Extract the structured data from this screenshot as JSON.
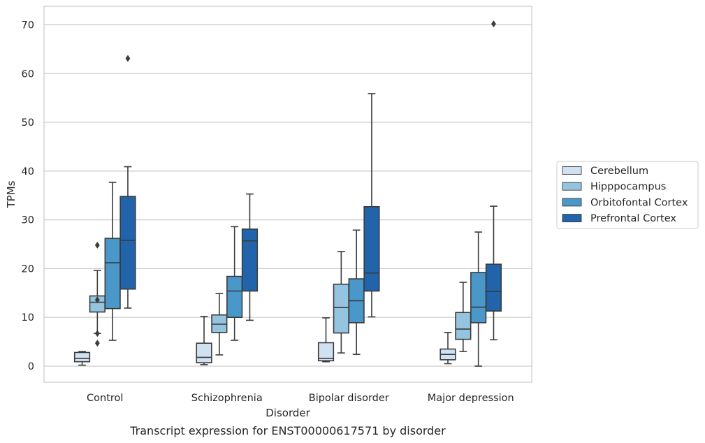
{
  "chart_data": {
    "type": "box",
    "xlabel": "Disorder",
    "ylabel": "TPMs",
    "caption": "Transcript expression for ENST00000617571 by disorder",
    "categories": [
      "Control",
      "Schizophrenia",
      "Bipolar disorder",
      "Major depression"
    ],
    "ylim": [
      -3.3,
      73.8
    ],
    "yticks": [
      0,
      10,
      20,
      30,
      40,
      50,
      60,
      70
    ],
    "grid": "horizontal",
    "legend_position": "right",
    "series": [
      {
        "name": "Cerebellum",
        "color": "#d0e1f2",
        "boxes": [
          {
            "whislo": 0.2,
            "q1": 0.9,
            "med": 1.6,
            "q3": 2.8,
            "whishi": 3.0,
            "fliers": []
          },
          {
            "whislo": 0.3,
            "q1": 0.7,
            "med": 1.8,
            "q3": 4.7,
            "whishi": 10.2,
            "fliers": []
          },
          {
            "whislo": 0.9,
            "q1": 1.1,
            "med": 1.6,
            "q3": 4.8,
            "whishi": 9.9,
            "fliers": []
          },
          {
            "whislo": 0.5,
            "q1": 1.3,
            "med": 2.4,
            "q3": 3.5,
            "whishi": 6.9,
            "fliers": []
          }
        ]
      },
      {
        "name": "Hipppocampus",
        "color": "#94c4df",
        "boxes": [
          {
            "whislo": 6.7,
            "q1": 11.1,
            "med": 13.1,
            "q3": 14.4,
            "whishi": 19.6,
            "fliers": [
              13.6,
              6.7,
              4.7,
              24.8
            ]
          },
          {
            "whislo": 2.3,
            "q1": 6.9,
            "med": 8.6,
            "q3": 10.5,
            "whishi": 14.9,
            "fliers": []
          },
          {
            "whislo": 2.7,
            "q1": 6.8,
            "med": 12.0,
            "q3": 16.8,
            "whishi": 23.5,
            "fliers": []
          },
          {
            "whislo": 3.0,
            "q1": 5.5,
            "med": 7.6,
            "q3": 11.0,
            "whishi": 17.2,
            "fliers": []
          }
        ]
      },
      {
        "name": "Orbitofontal Cortex",
        "color": "#4a98c9",
        "boxes": [
          {
            "whislo": 5.3,
            "q1": 11.8,
            "med": 21.2,
            "q3": 26.2,
            "whishi": 37.7,
            "fliers": []
          },
          {
            "whislo": 5.3,
            "q1": 10.0,
            "med": 15.4,
            "q3": 18.4,
            "whishi": 28.6,
            "fliers": []
          },
          {
            "whislo": 2.4,
            "q1": 8.9,
            "med": 13.4,
            "q3": 17.9,
            "whishi": 27.9,
            "fliers": []
          },
          {
            "whislo": 0.0,
            "q1": 8.9,
            "med": 12.1,
            "q3": 19.2,
            "whishi": 27.5,
            "fliers": []
          }
        ]
      },
      {
        "name": "Prefrontal Cortex",
        "color": "#2164ab",
        "boxes": [
          {
            "whislo": 11.9,
            "q1": 15.8,
            "med": 25.8,
            "q3": 34.8,
            "whishi": 40.9,
            "fliers": [
              63.1
            ]
          },
          {
            "whislo": 9.4,
            "q1": 15.4,
            "med": 25.7,
            "q3": 28.1,
            "whishi": 35.3,
            "fliers": []
          },
          {
            "whislo": 10.1,
            "q1": 15.4,
            "med": 19.1,
            "q3": 32.7,
            "whishi": 55.9,
            "fliers": []
          },
          {
            "whislo": 5.4,
            "q1": 11.3,
            "med": 15.3,
            "q3": 20.9,
            "whishi": 32.8,
            "fliers": [
              70.2
            ]
          }
        ]
      }
    ]
  }
}
